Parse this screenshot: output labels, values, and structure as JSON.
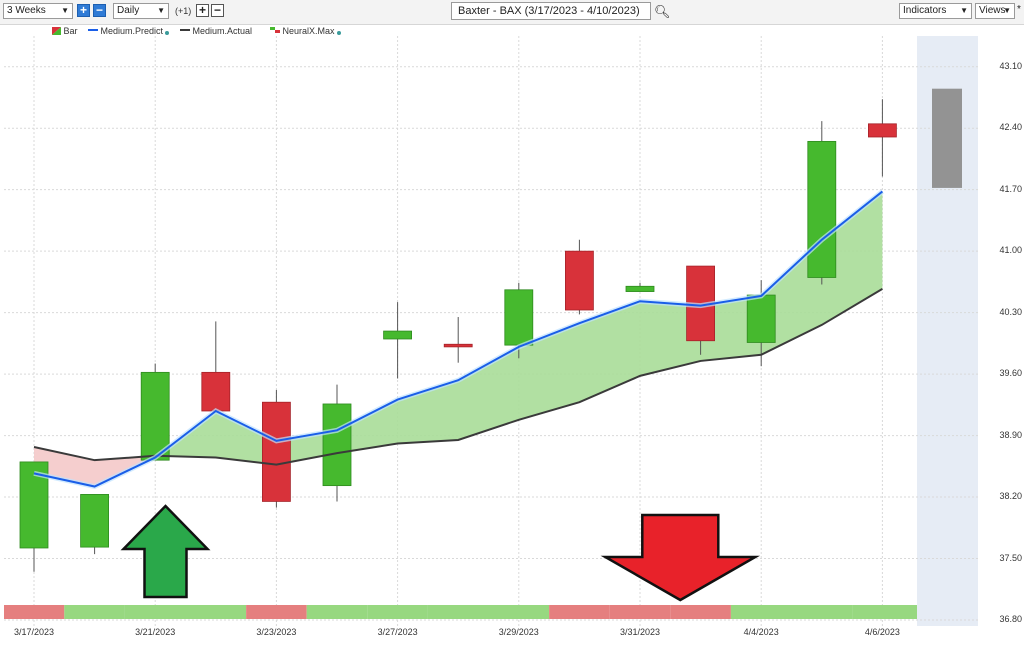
{
  "toolbar": {
    "range_select": "3 Weeks",
    "interval_select": "Daily",
    "offset_label": "(+1)",
    "chart_title": "Baxter - BAX (3/17/2023 - 4/10/2023)",
    "indicators_label": "Indicators",
    "views_label": "Views",
    "views_marker": "*"
  },
  "legend": {
    "bar": "Bar",
    "medium_predict": "Medium.Predict",
    "medium_actual": "Medium.Actual",
    "neuralx": "NeuralX.Max"
  },
  "colors": {
    "up": "#46b92e",
    "down": "#d8323a",
    "predict": "#1a5ee8",
    "actual": "#3a3a3a",
    "fill_up": "#a8dd98",
    "fill_down": "#f3c6c6",
    "forecast_panel": "#e6ecf5"
  },
  "chart_data": {
    "type": "candlestick",
    "ylim": [
      36.8,
      43.45
    ],
    "y_ticks": [
      "43.10",
      "42.40",
      "41.70",
      "41.00",
      "40.30",
      "39.60",
      "38.90",
      "38.20",
      "37.50",
      "36.80"
    ],
    "x_ticks": [
      "3/17/2023",
      "3/21/2023",
      "3/23/2023",
      "3/27/2023",
      "3/29/2023",
      "3/31/2023",
      "4/4/2023",
      "4/6/2023"
    ],
    "candles": [
      {
        "open": 37.62,
        "close": 38.6,
        "high": 38.6,
        "low": 37.35
      },
      {
        "open": 37.63,
        "close": 38.23,
        "high": 38.23,
        "low": 37.55
      },
      {
        "open": 38.62,
        "close": 39.62,
        "high": 39.72,
        "low": 38.62
      },
      {
        "open": 39.62,
        "close": 39.18,
        "high": 40.2,
        "low": 39.18
      },
      {
        "open": 39.28,
        "close": 38.15,
        "high": 39.42,
        "low": 38.08
      },
      {
        "open": 38.33,
        "close": 39.26,
        "high": 39.48,
        "low": 38.15
      },
      {
        "open": 40.0,
        "close": 40.09,
        "high": 40.42,
        "low": 39.55
      },
      {
        "open": 39.94,
        "close": 39.91,
        "high": 40.25,
        "low": 39.73
      },
      {
        "open": 39.93,
        "close": 40.56,
        "high": 40.64,
        "low": 39.78
      },
      {
        "open": 41.0,
        "close": 40.33,
        "high": 41.13,
        "low": 40.28
      },
      {
        "open": 40.54,
        "close": 40.6,
        "high": 40.64,
        "low": 40.54
      },
      {
        "open": 40.83,
        "close": 39.98,
        "high": 40.83,
        "low": 39.82
      },
      {
        "open": 39.96,
        "close": 40.5,
        "high": 40.67,
        "low": 39.69
      },
      {
        "open": 40.7,
        "close": 42.25,
        "high": 42.48,
        "low": 40.62
      },
      {
        "open": 42.45,
        "close": 42.3,
        "high": 42.73,
        "low": 41.85
      }
    ],
    "medium_predict": [
      38.47,
      38.32,
      38.65,
      39.18,
      38.84,
      38.96,
      39.31,
      39.53,
      39.91,
      40.18,
      40.43,
      40.38,
      40.49,
      41.13,
      41.68
    ],
    "medium_actual": [
      38.77,
      38.62,
      38.67,
      38.65,
      38.57,
      38.7,
      38.81,
      38.85,
      39.08,
      39.28,
      39.58,
      39.75,
      39.82,
      40.16,
      40.57
    ],
    "forecast_bar": {
      "high": 42.85,
      "low": 41.72
    },
    "signal_strip": [
      "red",
      "green",
      "green",
      "green",
      "red",
      "green",
      "green",
      "green",
      "green",
      "red",
      "red",
      "red",
      "green",
      "green",
      "green"
    ],
    "signal_arrows": [
      {
        "type": "up",
        "index": 2.5
      },
      {
        "type": "down",
        "index": 10.5
      }
    ]
  }
}
